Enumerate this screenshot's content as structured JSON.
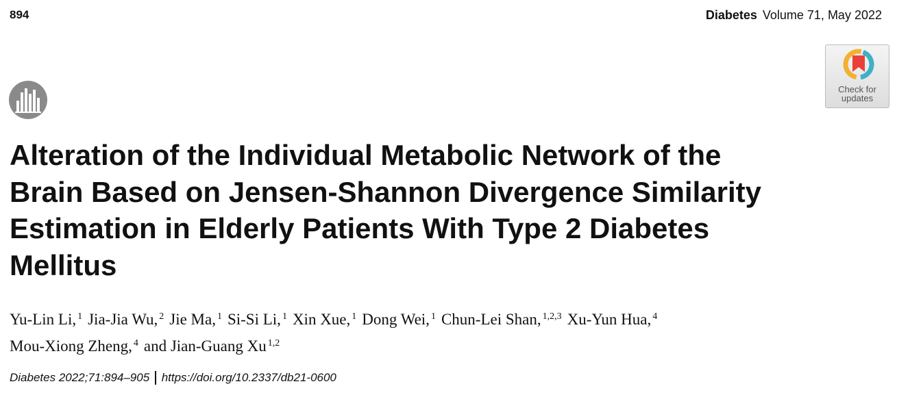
{
  "header": {
    "page_number": "894",
    "journal": "Diabetes",
    "issue": "Volume 71, May 2022"
  },
  "badge": {
    "lines": [
      "Check for",
      "updates"
    ]
  },
  "title_lines": [
    "Alteration of the Individual Metabolic Network of the",
    "Brain Based on Jensen-Shannon Divergence Similarity",
    "Estimation in Elderly Patients With Type 2 Diabetes",
    "Mellitus"
  ],
  "author_lines": [
    [
      {
        "name": "Yu-Lin Li,",
        "aff": "1"
      },
      {
        "name": "Jia-Jia Wu,",
        "aff": "2"
      },
      {
        "name": "Jie Ma,",
        "aff": "1"
      },
      {
        "name": "Si-Si Li,",
        "aff": "1"
      },
      {
        "name": "Xin Xue,",
        "aff": "1"
      },
      {
        "name": "Dong Wei,",
        "aff": "1"
      },
      {
        "name": "Chun-Lei Shan,",
        "aff": "1,2,3"
      },
      {
        "name": "Xu-Yun Hua,",
        "aff": "4"
      }
    ],
    [
      {
        "name": "Mou-Xiong Zheng,",
        "aff": "4"
      },
      {
        "name": "and Jian-Guang Xu",
        "aff": "1,2"
      }
    ]
  ],
  "citation": {
    "reference": "Diabetes 2022;71:894–905",
    "doi": "https://doi.org/10.2337/db21-0600"
  }
}
